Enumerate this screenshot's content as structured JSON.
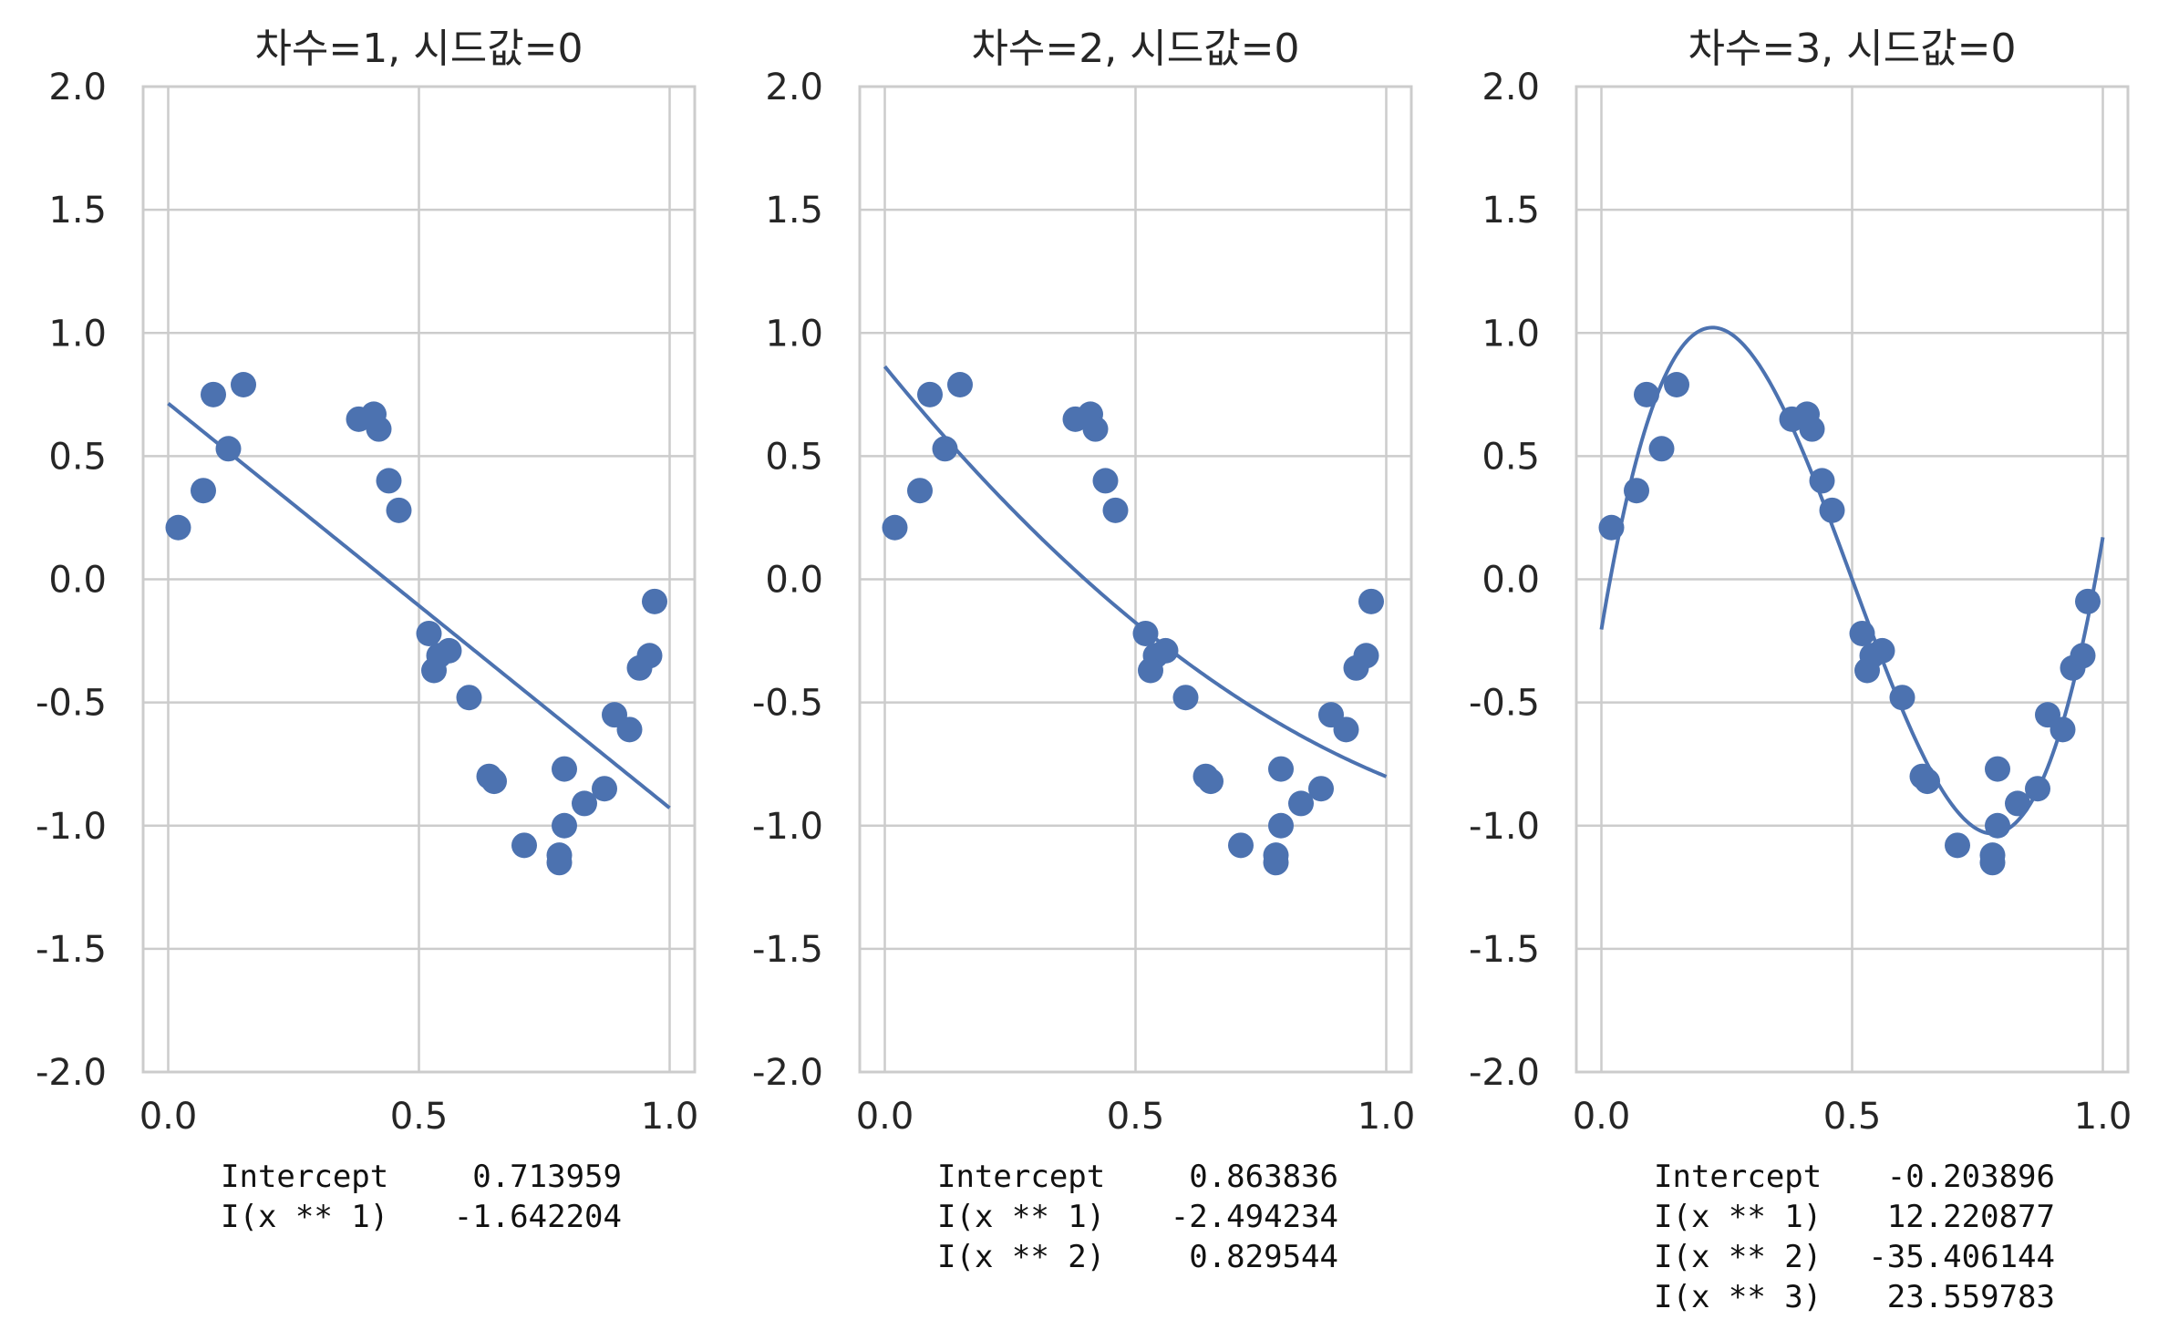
{
  "chart_data": [
    {
      "type": "scatter",
      "title": "차수=1, 시드값=0",
      "degree": 1,
      "xlim": [
        0.0,
        1.0
      ],
      "ylim": [
        -2.0,
        2.0
      ],
      "x_ticks": [
        "0.0",
        "0.5",
        "1.0"
      ],
      "y_ticks": [
        "2.0",
        "1.5",
        "1.0",
        "0.5",
        "0.0",
        "-0.5",
        "-1.0",
        "-1.5",
        "-2.0"
      ],
      "grid": true,
      "coefficients": [
        {
          "name": "Intercept",
          "value": "0.713959",
          "num": 0.713959
        },
        {
          "name": "I(x ** 1)",
          "value": "-1.642204",
          "num": -1.642204
        }
      ]
    },
    {
      "type": "scatter",
      "title": "차수=2, 시드값=0",
      "degree": 2,
      "xlim": [
        0.0,
        1.0
      ],
      "ylim": [
        -2.0,
        2.0
      ],
      "x_ticks": [
        "0.0",
        "0.5",
        "1.0"
      ],
      "y_ticks": [
        "2.0",
        "1.5",
        "1.0",
        "0.5",
        "0.0",
        "-0.5",
        "-1.0",
        "-1.5",
        "-2.0"
      ],
      "grid": true,
      "coefficients": [
        {
          "name": "Intercept",
          "value": "0.863836",
          "num": 0.863836
        },
        {
          "name": "I(x ** 1)",
          "value": "-2.494234",
          "num": -2.494234
        },
        {
          "name": "I(x ** 2)",
          "value": "0.829544",
          "num": 0.829544
        }
      ]
    },
    {
      "type": "scatter",
      "title": "차수=3, 시드값=0",
      "degree": 3,
      "xlim": [
        0.0,
        1.0
      ],
      "ylim": [
        -2.0,
        2.0
      ],
      "x_ticks": [
        "0.0",
        "0.5",
        "1.0"
      ],
      "y_ticks": [
        "2.0",
        "1.5",
        "1.0",
        "0.5",
        "0.0",
        "-0.5",
        "-1.0",
        "-1.5",
        "-2.0"
      ],
      "grid": true,
      "coefficients": [
        {
          "name": "Intercept",
          "value": "-0.203896",
          "num": -0.203896
        },
        {
          "name": "I(x ** 1)",
          "value": "12.220877",
          "num": 12.220877
        },
        {
          "name": "I(x ** 2)",
          "value": "-35.406144",
          "num": -35.406144
        },
        {
          "name": "I(x ** 3)",
          "value": "23.559783",
          "num": 23.559783
        }
      ]
    }
  ],
  "points": [
    {
      "x": 0.02,
      "y": 0.21
    },
    {
      "x": 0.07,
      "y": 0.36
    },
    {
      "x": 0.09,
      "y": 0.75
    },
    {
      "x": 0.12,
      "y": 0.53
    },
    {
      "x": 0.15,
      "y": 0.79
    },
    {
      "x": 0.38,
      "y": 0.65
    },
    {
      "x": 0.41,
      "y": 0.67
    },
    {
      "x": 0.42,
      "y": 0.61
    },
    {
      "x": 0.44,
      "y": 0.4
    },
    {
      "x": 0.46,
      "y": 0.28
    },
    {
      "x": 0.52,
      "y": -0.22
    },
    {
      "x": 0.53,
      "y": -0.37
    },
    {
      "x": 0.54,
      "y": -0.31
    },
    {
      "x": 0.56,
      "y": -0.29
    },
    {
      "x": 0.6,
      "y": -0.48
    },
    {
      "x": 0.64,
      "y": -0.8
    },
    {
      "x": 0.65,
      "y": -0.82
    },
    {
      "x": 0.71,
      "y": -1.08
    },
    {
      "x": 0.78,
      "y": -1.12
    },
    {
      "x": 0.78,
      "y": -1.15
    },
    {
      "x": 0.79,
      "y": -0.77
    },
    {
      "x": 0.79,
      "y": -1.0
    },
    {
      "x": 0.83,
      "y": -0.91
    },
    {
      "x": 0.87,
      "y": -0.85
    },
    {
      "x": 0.89,
      "y": -0.55
    },
    {
      "x": 0.92,
      "y": -0.61
    },
    {
      "x": 0.94,
      "y": -0.36
    },
    {
      "x": 0.96,
      "y": -0.31
    },
    {
      "x": 0.97,
      "y": -0.09
    }
  ]
}
